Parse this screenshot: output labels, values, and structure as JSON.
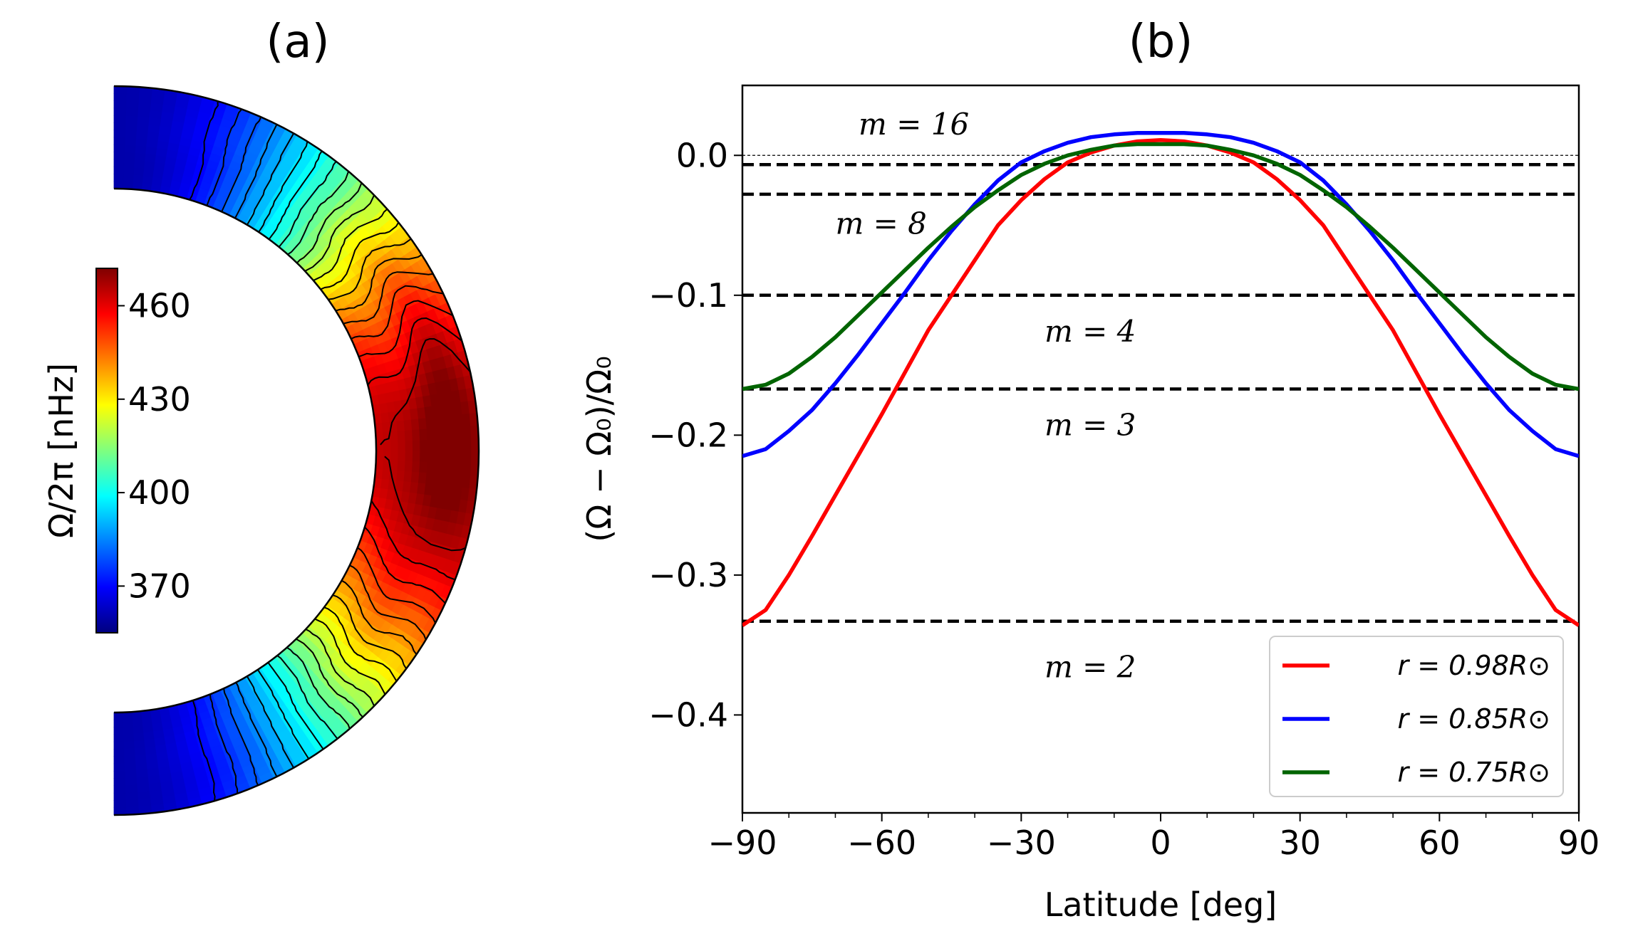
{
  "chart_data": [
    {
      "panel": "(a)",
      "type": "heatmap",
      "title": "(a)",
      "description_kind": "meridional rotation contour map",
      "colorbar": {
        "label": "Ω/2π [nHz]",
        "range": [
          355,
          472
        ],
        "ticks": [
          "460",
          "430",
          "400",
          "370"
        ],
        "tick_values": [
          460,
          430,
          400,
          370
        ],
        "colormap": [
          "#00007f",
          "#0000ff",
          "#007fff",
          "#00ffff",
          "#7fff7f",
          "#ffff00",
          "#ff7f00",
          "#ff0000",
          "#7f0000"
        ]
      },
      "structure": {
        "equator_value": 468,
        "pole_value": 360,
        "contour_levels": [
          370,
          375,
          380,
          385,
          390,
          395,
          400,
          405,
          410,
          415,
          420,
          425,
          430,
          435,
          440,
          445,
          450,
          455,
          460,
          465
        ]
      }
    },
    {
      "panel": "(b)",
      "type": "line",
      "title": "(b)",
      "xlabel": "Latitude [deg]",
      "ylabel": "(Ω − Ω₀)/Ω₀",
      "xlim": [
        -90,
        90
      ],
      "ylim": [
        -0.47,
        0.05
      ],
      "xticks": [
        "−90",
        "−60",
        "−30",
        "0",
        "30",
        "60",
        "90"
      ],
      "xtick_values": [
        -90,
        -60,
        -30,
        0,
        30,
        60,
        90
      ],
      "yticks": [
        "0.0",
        "−0.1",
        "−0.2",
        "−0.3",
        "−0.4"
      ],
      "ytick_values": [
        0.0,
        -0.1,
        -0.2,
        -0.3,
        -0.4
      ],
      "x": [
        -90,
        -85,
        -80,
        -75,
        -70,
        -65,
        -60,
        -55,
        -50,
        -45,
        -40,
        -35,
        -30,
        -25,
        -20,
        -15,
        -10,
        -5,
        0,
        5,
        10,
        15,
        20,
        25,
        30,
        35,
        40,
        45,
        50,
        55,
        60,
        65,
        70,
        75,
        80,
        85,
        90
      ],
      "series": [
        {
          "name": "r = 0.98R⊙",
          "color": "#ff0000",
          "values": [
            -0.336,
            -0.325,
            -0.3,
            -0.272,
            -0.243,
            -0.214,
            -0.185,
            -0.155,
            -0.125,
            -0.1,
            -0.075,
            -0.05,
            -0.032,
            -0.017,
            -0.005,
            0.002,
            0.007,
            0.01,
            0.011,
            0.01,
            0.007,
            0.002,
            -0.005,
            -0.017,
            -0.032,
            -0.05,
            -0.075,
            -0.1,
            -0.125,
            -0.155,
            -0.185,
            -0.214,
            -0.243,
            -0.272,
            -0.3,
            -0.325,
            -0.336
          ]
        },
        {
          "name": "r = 0.85R⊙",
          "color": "#0000ff",
          "values": [
            -0.215,
            -0.21,
            -0.197,
            -0.182,
            -0.163,
            -0.142,
            -0.12,
            -0.098,
            -0.075,
            -0.054,
            -0.035,
            -0.018,
            -0.005,
            0.003,
            0.009,
            0.013,
            0.015,
            0.016,
            0.016,
            0.016,
            0.015,
            0.013,
            0.009,
            0.003,
            -0.005,
            -0.018,
            -0.035,
            -0.054,
            -0.075,
            -0.098,
            -0.12,
            -0.142,
            -0.163,
            -0.182,
            -0.197,
            -0.21,
            -0.215
          ]
        },
        {
          "name": "r = 0.75R⊙",
          "color": "#006400",
          "values": [
            -0.167,
            -0.164,
            -0.156,
            -0.144,
            -0.13,
            -0.114,
            -0.098,
            -0.082,
            -0.066,
            -0.051,
            -0.037,
            -0.025,
            -0.014,
            -0.006,
            0.0,
            0.004,
            0.007,
            0.008,
            0.008,
            0.008,
            0.007,
            0.004,
            0.0,
            -0.006,
            -0.014,
            -0.025,
            -0.037,
            -0.051,
            -0.066,
            -0.082,
            -0.098,
            -0.114,
            -0.13,
            -0.144,
            -0.156,
            -0.164,
            -0.167
          ]
        }
      ],
      "reference_line": {
        "y": 0.0,
        "style": "thin dashed"
      },
      "threshold_lines": [
        {
          "label": "m = 16",
          "y": -0.0066,
          "label_x": -65,
          "label_y": 0.022
        },
        {
          "label": "m = 8",
          "y": -0.0278,
          "label_x": -70,
          "label_y": -0.049
        },
        {
          "label": "m = 4",
          "y": -0.1,
          "label_x": -25,
          "label_y": -0.126
        },
        {
          "label": "m = 3",
          "y": -0.167,
          "label_x": -25,
          "label_y": -0.193
        },
        {
          "label": "m = 2",
          "y": -0.333,
          "label_x": -25,
          "label_y": -0.366
        }
      ],
      "legend": {
        "placement": "bottom-right"
      }
    }
  ]
}
